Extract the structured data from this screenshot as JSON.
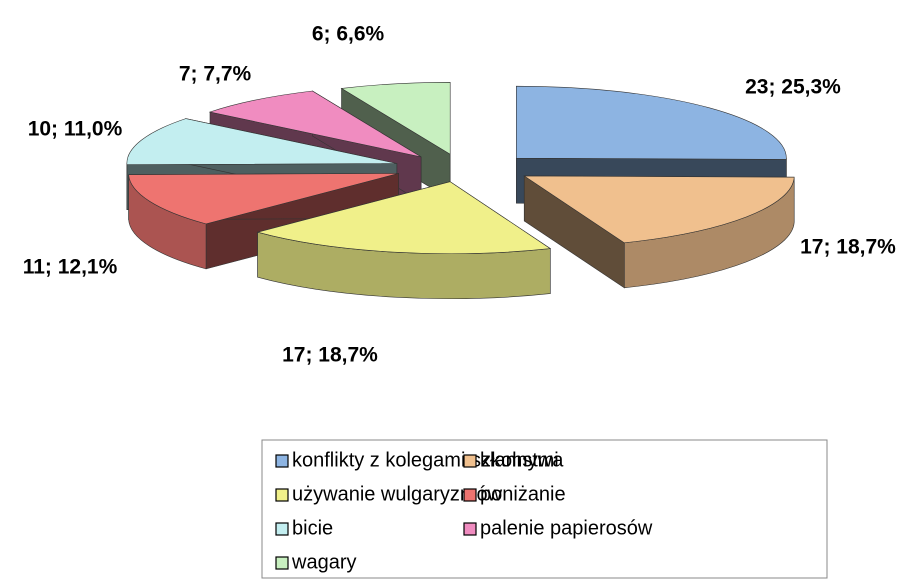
{
  "chart_data": {
    "type": "pie3d",
    "categories": [
      "konflikty z kolegami szkolnymi",
      "kłamstwa",
      "używanie wulgaryzmów",
      "poniżanie",
      "bicie",
      "palenie papierosów",
      "wagary"
    ],
    "values": [
      23,
      17,
      17,
      11,
      10,
      7,
      6
    ],
    "value_labels": [
      "23; 25,3%",
      "17; 18,7%",
      "17; 18,7%",
      "11; 12,1%",
      "10; 11,0%",
      "7; 7,7%",
      "6; 6,6%"
    ],
    "colors": [
      "#8db4e2",
      "#f0c08e",
      "#f0f08a",
      "#ee7470",
      "#c3eef0",
      "#f08cc0",
      "#c8f0c0"
    ],
    "legend": "bottom"
  }
}
